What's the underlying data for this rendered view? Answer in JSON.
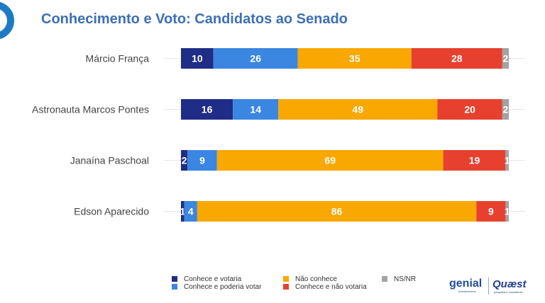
{
  "title": "Conhecimento e Voto: Candidatos ao Senado",
  "brand": {
    "genial": "genial",
    "genial_sub": "investimentos",
    "quaest": "Quæst",
    "quaest_sub": "pesquisa e consultoria"
  },
  "chart_data": {
    "type": "bar",
    "orientation": "horizontal",
    "stacked": true,
    "categories": [
      "Márcio França",
      "Astronauta Marcos Pontes",
      "Janaína Paschoal",
      "Edson Aparecido"
    ],
    "series": [
      {
        "name": "Conhece e votaria",
        "color": "#1f2d86",
        "values": [
          10,
          16,
          2,
          1
        ]
      },
      {
        "name": "Conhece e poderia votar",
        "color": "#3a86e0",
        "values": [
          26,
          14,
          9,
          4
        ]
      },
      {
        "name": "Não conhece",
        "color": "#f8a800",
        "values": [
          35,
          49,
          69,
          86
        ]
      },
      {
        "name": "Conhece e não votaria",
        "color": "#e8402f",
        "values": [
          28,
          20,
          19,
          9
        ]
      },
      {
        "name": "NS/NR",
        "color": "#a3a3a3",
        "values": [
          2,
          2,
          1,
          1
        ]
      }
    ],
    "legend_position": "bottom",
    "grid": false
  }
}
